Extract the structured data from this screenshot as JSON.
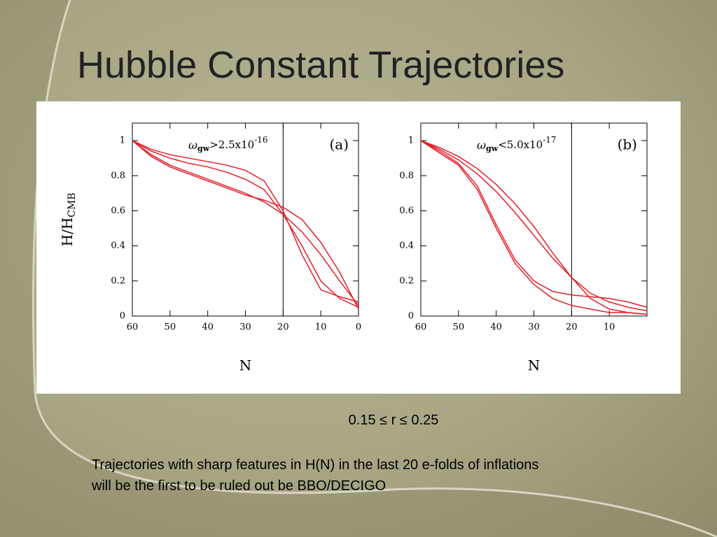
{
  "slide": {
    "title": "Hubble Constant Trajectories",
    "caption": "0.15 ≤ r ≤ 0.25",
    "note": [
      "Trajectories with sharp features in H(N) in the last 20 e-folds of inflations",
      "will be the first to be ruled out be BBO/DECIGO"
    ]
  },
  "chart_data": [
    {
      "type": "line",
      "panel_label": "(a)",
      "annotation": {
        "symbol": "ω",
        "sub": "gw",
        "text": ">2.5x10",
        "sup": "-16"
      },
      "y_label": {
        "text": "H/H",
        "sub": "CMB"
      },
      "x_label": "N",
      "vline": 20,
      "x": [
        60,
        55,
        50,
        45,
        40,
        35,
        30,
        25,
        20,
        15,
        10,
        5,
        0
      ],
      "series": [
        {
          "color": "#e3202a",
          "values": [
            1.0,
            0.95,
            0.92,
            0.9,
            0.88,
            0.86,
            0.83,
            0.77,
            0.6,
            0.35,
            0.15,
            0.11,
            0.08
          ]
        },
        {
          "color": "#e3202a",
          "values": [
            1.0,
            0.94,
            0.9,
            0.87,
            0.85,
            0.82,
            0.78,
            0.72,
            0.58,
            0.4,
            0.2,
            0.1,
            0.05
          ]
        },
        {
          "color": "#e3202a",
          "values": [
            1.0,
            0.92,
            0.86,
            0.82,
            0.78,
            0.74,
            0.7,
            0.65,
            0.58,
            0.48,
            0.35,
            0.2,
            0.06
          ]
        },
        {
          "color": "#e3202a",
          "values": [
            1.0,
            0.91,
            0.85,
            0.81,
            0.77,
            0.73,
            0.69,
            0.66,
            0.62,
            0.55,
            0.42,
            0.25,
            0.04
          ]
        }
      ],
      "xlim": [
        60,
        0
      ],
      "xticks": [
        60,
        50,
        40,
        30,
        20,
        10,
        0
      ],
      "ylim": [
        0,
        1.1
      ],
      "yticks": [
        0,
        0.2,
        0.4,
        0.6,
        0.8,
        1
      ],
      "grid": false
    },
    {
      "type": "line",
      "panel_label": "(b)",
      "annotation": {
        "symbol": "ω",
        "sub": "gw",
        "text": "<5.0x10",
        "sup": "-17"
      },
      "x_label": "N",
      "vline": 20,
      "x": [
        60,
        55,
        50,
        45,
        40,
        35,
        30,
        25,
        20,
        15,
        10,
        5,
        0
      ],
      "series": [
        {
          "color": "#e3202a",
          "values": [
            1.0,
            0.94,
            0.87,
            0.74,
            0.52,
            0.32,
            0.2,
            0.14,
            0.12,
            0.11,
            0.1,
            0.08,
            0.05
          ]
        },
        {
          "color": "#e3202a",
          "values": [
            1.0,
            0.93,
            0.86,
            0.72,
            0.5,
            0.3,
            0.18,
            0.1,
            0.06,
            0.04,
            0.02,
            0.02,
            0.01
          ]
        },
        {
          "color": "#e3202a",
          "values": [
            1.0,
            0.95,
            0.89,
            0.81,
            0.71,
            0.59,
            0.46,
            0.33,
            0.22,
            0.1,
            0.04,
            0.02,
            0.01
          ]
        },
        {
          "color": "#e3202a",
          "values": [
            1.0,
            0.96,
            0.91,
            0.84,
            0.75,
            0.64,
            0.51,
            0.36,
            0.22,
            0.13,
            0.08,
            0.05,
            0.03
          ]
        }
      ],
      "xlim": [
        60,
        0
      ],
      "xticks": [
        60,
        50,
        40,
        30,
        20,
        10
      ],
      "ylim": [
        0,
        1.1
      ],
      "yticks": [
        0,
        0.2,
        0.4,
        0.6,
        0.8,
        1
      ],
      "grid": false
    }
  ]
}
